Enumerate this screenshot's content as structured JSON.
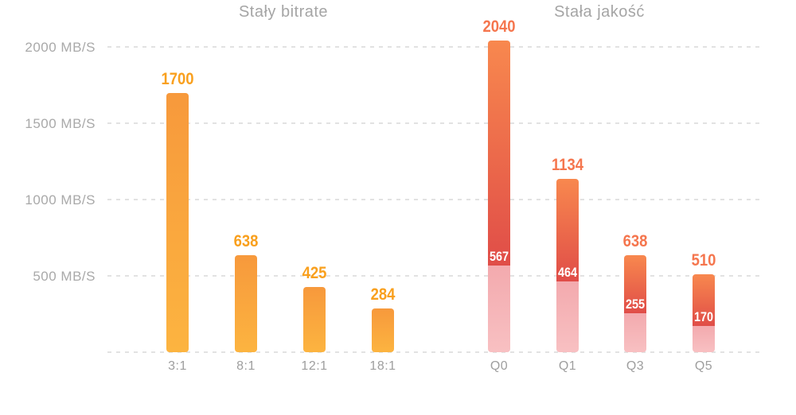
{
  "colors": {
    "background": "#FFFFFF",
    "gridline": "#E2E2E2",
    "axis_text": "#A9A9A9",
    "x_axis_text": "#9E9E9E",
    "title_text": "#A5A5A5",
    "left_bar_gradient_top": "#F7993C",
    "left_bar_gradient_bottom": "#FCB440",
    "left_value_label": "#F9A01E",
    "right_bar_gradient_top": "#F8884E",
    "right_bar_gradient_bottom": "#E04D48",
    "right_base_gradient_top": "#F3AAAE",
    "right_base_gradient_bottom": "#F8C0C2",
    "right_value_label": "#F5764E",
    "inner_value_label": "#FFFFFF"
  },
  "chart_data": {
    "type": "bar",
    "unit": "MB/S",
    "ylim": [
      0,
      2125
    ],
    "grid": "horizontal dashed lines",
    "legend": "none",
    "y_ticks": [
      {
        "value": 2000,
        "label": "2000 MB/S"
      },
      {
        "value": 1500,
        "label": "1500 MB/S"
      },
      {
        "value": 1000,
        "label": "1000 MB/S"
      },
      {
        "value": 500,
        "label": "500 MB/S"
      },
      {
        "value": 0,
        "label": ""
      }
    ],
    "groups": [
      {
        "title": "Stały bitrate",
        "style": "solid orange-yellow gradient bars",
        "categories": [
          "3:1",
          "8:1",
          "12:1",
          "18:1"
        ],
        "values": [
          1700,
          638,
          425,
          284
        ],
        "value_labels": [
          "1700",
          "638",
          "425",
          "284"
        ]
      },
      {
        "title": "Stała jakość",
        "style": "stacked bars: pink base segment (base value) + orange-to-red gradient upper segment, total equals value",
        "categories": [
          "Q0",
          "Q1",
          "Q3",
          "Q5"
        ],
        "values": [
          2040,
          1134,
          638,
          510
        ],
        "value_labels": [
          "2040",
          "1134",
          "638",
          "510"
        ],
        "base_values": [
          567,
          464,
          255,
          170
        ],
        "base_value_labels": [
          "567",
          "464",
          "255",
          "170"
        ]
      }
    ]
  }
}
